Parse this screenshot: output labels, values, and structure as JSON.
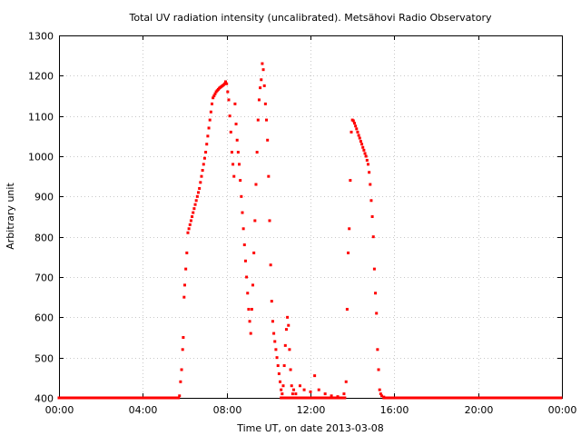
{
  "chart_data": {
    "type": "scatter",
    "title": "Total UV radiation intensity (uncalibrated). Metsähovi Radio Observatory",
    "xlabel": "Time UT, on date 2013-03-08",
    "ylabel": "Arbitrary unit",
    "xlim": [
      0,
      24
    ],
    "ylim": [
      400,
      1300
    ],
    "x_ticks": [
      0,
      4,
      8,
      12,
      16,
      20,
      24
    ],
    "x_tick_labels": [
      "00:00",
      "04:00",
      "08:00",
      "12:00",
      "16:00",
      "20:00",
      "00:00"
    ],
    "y_ticks": [
      400,
      500,
      600,
      700,
      800,
      900,
      1000,
      1100,
      1200,
      1300
    ],
    "y_tick_labels": [
      "400",
      "500",
      "600",
      "700",
      "800",
      "900",
      "1000",
      "1100",
      "1200",
      "1300"
    ],
    "grid": true,
    "marker_color": "#ff0000",
    "baseline_value": 400,
    "points": [
      [
        5.75,
        405
      ],
      [
        5.8,
        440
      ],
      [
        5.85,
        470
      ],
      [
        5.9,
        520
      ],
      [
        5.93,
        550
      ],
      [
        5.97,
        650
      ],
      [
        6.0,
        680
      ],
      [
        6.05,
        720
      ],
      [
        6.1,
        760
      ],
      [
        6.15,
        810
      ],
      [
        6.2,
        820
      ],
      [
        6.25,
        830
      ],
      [
        6.3,
        840
      ],
      [
        6.35,
        850
      ],
      [
        6.4,
        860
      ],
      [
        6.45,
        870
      ],
      [
        6.5,
        880
      ],
      [
        6.55,
        890
      ],
      [
        6.6,
        900
      ],
      [
        6.65,
        910
      ],
      [
        6.7,
        920
      ],
      [
        6.75,
        935
      ],
      [
        6.8,
        950
      ],
      [
        6.85,
        965
      ],
      [
        6.9,
        980
      ],
      [
        6.95,
        995
      ],
      [
        7.0,
        1010
      ],
      [
        7.05,
        1030
      ],
      [
        7.1,
        1050
      ],
      [
        7.15,
        1070
      ],
      [
        7.2,
        1090
      ],
      [
        7.25,
        1110
      ],
      [
        7.3,
        1130
      ],
      [
        7.35,
        1145
      ],
      [
        7.4,
        1150
      ],
      [
        7.45,
        1155
      ],
      [
        7.5,
        1160
      ],
      [
        7.55,
        1163
      ],
      [
        7.6,
        1166
      ],
      [
        7.65,
        1169
      ],
      [
        7.7,
        1171
      ],
      [
        7.75,
        1173
      ],
      [
        7.8,
        1175
      ],
      [
        7.85,
        1177
      ],
      [
        7.9,
        1180
      ],
      [
        7.95,
        1185
      ],
      [
        8.0,
        1180
      ],
      [
        8.05,
        1160
      ],
      [
        8.1,
        1140
      ],
      [
        8.15,
        1100
      ],
      [
        8.2,
        1060
      ],
      [
        8.25,
        1010
      ],
      [
        8.3,
        980
      ],
      [
        8.35,
        950
      ],
      [
        8.4,
        1130
      ],
      [
        8.45,
        1080
      ],
      [
        8.5,
        1040
      ],
      [
        8.55,
        1010
      ],
      [
        8.6,
        980
      ],
      [
        8.65,
        940
      ],
      [
        8.7,
        900
      ],
      [
        8.75,
        860
      ],
      [
        8.8,
        820
      ],
      [
        8.85,
        780
      ],
      [
        8.9,
        740
      ],
      [
        8.95,
        700
      ],
      [
        9.0,
        660
      ],
      [
        9.05,
        620
      ],
      [
        9.1,
        590
      ],
      [
        9.15,
        560
      ],
      [
        9.2,
        620
      ],
      [
        9.25,
        680
      ],
      [
        9.3,
        760
      ],
      [
        9.35,
        840
      ],
      [
        9.4,
        930
      ],
      [
        9.45,
        1010
      ],
      [
        9.5,
        1090
      ],
      [
        9.55,
        1140
      ],
      [
        9.6,
        1170
      ],
      [
        9.65,
        1190
      ],
      [
        9.7,
        1230
      ],
      [
        9.75,
        1215
      ],
      [
        9.8,
        1175
      ],
      [
        9.85,
        1130
      ],
      [
        9.9,
        1090
      ],
      [
        9.95,
        1040
      ],
      [
        10.0,
        950
      ],
      [
        10.05,
        840
      ],
      [
        10.1,
        730
      ],
      [
        10.15,
        640
      ],
      [
        10.2,
        590
      ],
      [
        10.25,
        560
      ],
      [
        10.3,
        540
      ],
      [
        10.35,
        520
      ],
      [
        10.4,
        500
      ],
      [
        10.45,
        480
      ],
      [
        10.5,
        460
      ],
      [
        10.55,
        440
      ],
      [
        10.6,
        420
      ],
      [
        10.65,
        410
      ],
      [
        10.7,
        430
      ],
      [
        10.75,
        480
      ],
      [
        10.8,
        530
      ],
      [
        10.85,
        570
      ],
      [
        10.9,
        600
      ],
      [
        10.95,
        580
      ],
      [
        11.0,
        520
      ],
      [
        11.05,
        470
      ],
      [
        11.1,
        430
      ],
      [
        11.15,
        410
      ],
      [
        11.2,
        420
      ],
      [
        11.3,
        410
      ],
      [
        11.5,
        430
      ],
      [
        11.7,
        420
      ],
      [
        12.0,
        415
      ],
      [
        12.2,
        455
      ],
      [
        12.4,
        420
      ],
      [
        12.7,
        410
      ],
      [
        13.0,
        405
      ],
      [
        13.3,
        403
      ],
      [
        13.6,
        410
      ],
      [
        13.7,
        440
      ],
      [
        13.75,
        620
      ],
      [
        13.8,
        760
      ],
      [
        13.85,
        820
      ],
      [
        13.9,
        940
      ],
      [
        13.95,
        1060
      ],
      [
        14.0,
        1090
      ],
      [
        14.05,
        1088
      ],
      [
        14.1,
        1082
      ],
      [
        14.15,
        1075
      ],
      [
        14.2,
        1068
      ],
      [
        14.25,
        1060
      ],
      [
        14.3,
        1052
      ],
      [
        14.35,
        1045
      ],
      [
        14.4,
        1037
      ],
      [
        14.45,
        1030
      ],
      [
        14.5,
        1022
      ],
      [
        14.55,
        1015
      ],
      [
        14.6,
        1007
      ],
      [
        14.65,
        1000
      ],
      [
        14.7,
        990
      ],
      [
        14.75,
        980
      ],
      [
        14.8,
        960
      ],
      [
        14.85,
        930
      ],
      [
        14.9,
        890
      ],
      [
        14.95,
        850
      ],
      [
        15.0,
        800
      ],
      [
        15.05,
        720
      ],
      [
        15.1,
        660
      ],
      [
        15.15,
        610
      ],
      [
        15.2,
        520
      ],
      [
        15.25,
        470
      ],
      [
        15.3,
        420
      ],
      [
        15.35,
        410
      ],
      [
        15.4,
        405
      ],
      [
        15.5,
        402
      ]
    ]
  }
}
